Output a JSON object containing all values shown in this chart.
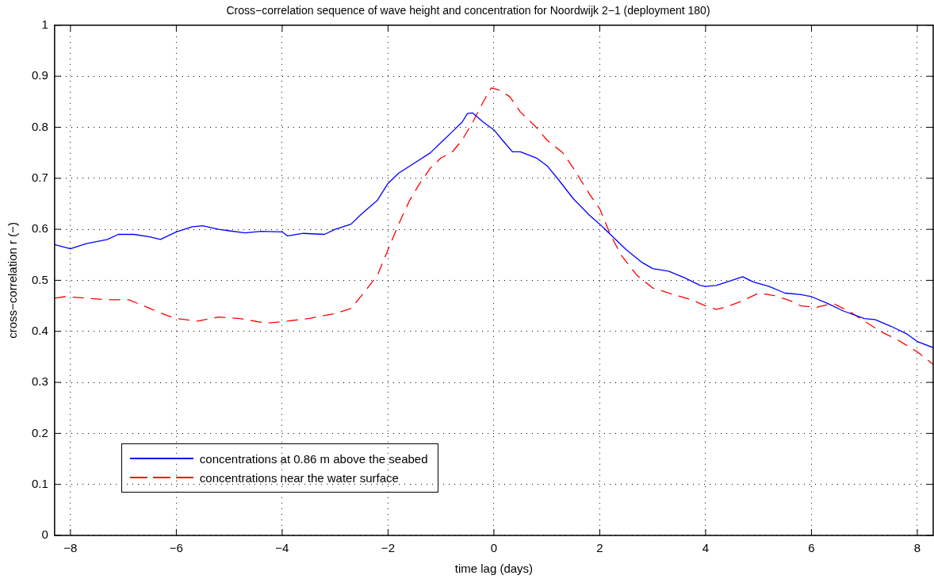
{
  "chart_data": {
    "type": "line",
    "title": "Cross−correlation sequence of wave height and concentration for Noordwijk 2−1 (deployment 180)",
    "xlabel": "time lag (days)",
    "ylabel": "cross−correlation r (−)",
    "xlim": [
      -8.3,
      8.3
    ],
    "xticks": [
      -8,
      -6,
      -4,
      -2,
      0,
      2,
      4,
      6,
      8
    ],
    "ylim": [
      0,
      1
    ],
    "yticks": [
      0,
      0.1,
      0.2,
      0.3,
      0.4,
      0.5,
      0.6,
      0.7,
      0.8,
      0.9,
      1
    ],
    "grid": true,
    "legend": "bottom left",
    "marker": "none",
    "series": [
      {
        "name": "concentrations at 0.86 m above the seabed",
        "color": "#0000ff",
        "line_style": "solid",
        "x": [
          -8.3,
          -8.0,
          -7.7,
          -7.3,
          -7.1,
          -6.8,
          -6.5,
          -6.3,
          -6.0,
          -5.7,
          -5.5,
          -5.2,
          -5.0,
          -4.7,
          -4.4,
          -4.0,
          -3.9,
          -3.6,
          -3.2,
          -3.0,
          -2.7,
          -2.5,
          -2.2,
          -2.0,
          -1.8,
          -1.5,
          -1.2,
          -1.0,
          -0.8,
          -0.6,
          -0.5,
          -0.4,
          -0.2,
          0,
          0.2,
          0.35,
          0.5,
          0.8,
          1.0,
          1.2,
          1.5,
          1.8,
          2.0,
          2.2,
          2.5,
          2.8,
          3.0,
          3.3,
          3.6,
          3.9,
          4.0,
          4.2,
          4.5,
          4.7,
          4.9,
          5.2,
          5.5,
          5.8,
          6.0,
          6.3,
          6.6,
          7.0,
          7.2,
          7.5,
          7.8,
          8.0,
          8.3
        ],
        "values": [
          0.57,
          0.562,
          0.572,
          0.58,
          0.59,
          0.59,
          0.585,
          0.58,
          0.595,
          0.605,
          0.607,
          0.6,
          0.597,
          0.593,
          0.596,
          0.595,
          0.587,
          0.592,
          0.59,
          0.6,
          0.61,
          0.63,
          0.657,
          0.69,
          0.71,
          0.73,
          0.75,
          0.77,
          0.79,
          0.81,
          0.827,
          0.828,
          0.81,
          0.795,
          0.77,
          0.752,
          0.752,
          0.74,
          0.725,
          0.7,
          0.66,
          0.628,
          0.61,
          0.59,
          0.56,
          0.535,
          0.523,
          0.518,
          0.505,
          0.49,
          0.488,
          0.49,
          0.5,
          0.507,
          0.497,
          0.488,
          0.475,
          0.472,
          0.468,
          0.455,
          0.44,
          0.425,
          0.423,
          0.41,
          0.395,
          0.38,
          0.368
        ]
      },
      {
        "name": "concentrations near the water surface",
        "color": "#ff0000",
        "line_style": "dashed",
        "x": [
          -8.3,
          -8.1,
          -7.7,
          -7.3,
          -6.9,
          -6.5,
          -6.2,
          -6.0,
          -5.6,
          -5.2,
          -4.8,
          -4.3,
          -4.0,
          -3.5,
          -3.0,
          -2.7,
          -2.5,
          -2.2,
          -2.0,
          -1.8,
          -1.6,
          -1.4,
          -1.2,
          -1.0,
          -0.8,
          -0.6,
          -0.4,
          -0.2,
          -0.05,
          0.1,
          0.3,
          0.5,
          0.8,
          1.0,
          1.3,
          1.5,
          1.8,
          2.0,
          2.2,
          2.4,
          2.7,
          3.0,
          3.3,
          3.7,
          4.0,
          4.2,
          4.4,
          4.7,
          5.0,
          5.3,
          5.6,
          5.8,
          6.1,
          6.4,
          6.7,
          7.0,
          7.3,
          7.6,
          8.0,
          8.3
        ],
        "values": [
          0.465,
          0.468,
          0.465,
          0.462,
          0.462,
          0.445,
          0.432,
          0.425,
          0.42,
          0.428,
          0.425,
          0.416,
          0.419,
          0.425,
          0.435,
          0.445,
          0.47,
          0.51,
          0.56,
          0.61,
          0.655,
          0.69,
          0.72,
          0.74,
          0.75,
          0.775,
          0.81,
          0.85,
          0.877,
          0.873,
          0.86,
          0.83,
          0.8,
          0.775,
          0.75,
          0.72,
          0.67,
          0.64,
          0.59,
          0.55,
          0.51,
          0.485,
          0.475,
          0.463,
          0.45,
          0.443,
          0.448,
          0.46,
          0.475,
          0.47,
          0.46,
          0.45,
          0.447,
          0.455,
          0.44,
          0.42,
          0.4,
          0.385,
          0.36,
          0.335
        ]
      }
    ]
  }
}
